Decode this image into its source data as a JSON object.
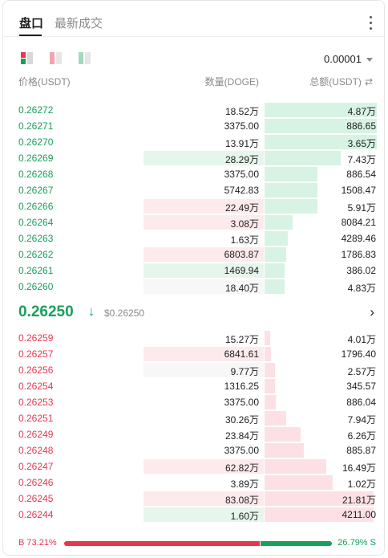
{
  "tabs": [
    {
      "label": "盘口",
      "active": true
    },
    {
      "label": "最新成交",
      "active": false
    }
  ],
  "precision": "0.00001",
  "headers": {
    "price": "价格(USDT)",
    "qty": "数量(DOGE)",
    "total": "总额(USDT)"
  },
  "bids": [
    {
      "price": "0.26272",
      "qty": "18.52万",
      "total": "4.87万",
      "depth": 1.0,
      "qty_hl": ""
    },
    {
      "price": "0.26271",
      "qty": "3375.00",
      "total": "886.65",
      "depth": 1.0,
      "qty_hl": ""
    },
    {
      "price": "0.26270",
      "qty": "13.91万",
      "total": "3.65万",
      "depth": 1.0,
      "qty_hl": ""
    },
    {
      "price": "0.26269",
      "qty": "28.29万",
      "total": "7.43万",
      "depth": 0.68,
      "qty_hl": "g"
    },
    {
      "price": "0.26268",
      "qty": "3375.00",
      "total": "886.54",
      "depth": 0.47,
      "qty_hl": ""
    },
    {
      "price": "0.26267",
      "qty": "5742.83",
      "total": "1508.47",
      "depth": 0.47,
      "qty_hl": ""
    },
    {
      "price": "0.26266",
      "qty": "22.49万",
      "total": "5.91万",
      "depth": 0.47,
      "qty_hl": "r"
    },
    {
      "price": "0.26264",
      "qty": "3.08万",
      "total": "8084.21",
      "depth": 0.25,
      "qty_hl": "r"
    },
    {
      "price": "0.26263",
      "qty": "1.63万",
      "total": "4289.46",
      "depth": 0.21,
      "qty_hl": ""
    },
    {
      "price": "0.26262",
      "qty": "6803.87",
      "total": "1786.83",
      "depth": 0.19,
      "qty_hl": "r"
    },
    {
      "price": "0.26261",
      "qty": "1469.94",
      "total": "386.02",
      "depth": 0.18,
      "qty_hl": "g"
    },
    {
      "price": "0.26260",
      "qty": "18.40万",
      "total": "4.83万",
      "depth": 0.18,
      "qty_hl": "n"
    }
  ],
  "last_price": "0.26250",
  "last_price_arrow": "↓",
  "last_price_fiat": "$0.26250",
  "asks": [
    {
      "price": "0.26259",
      "qty": "15.27万",
      "total": "4.01万",
      "depth": 0.05,
      "qty_hl": ""
    },
    {
      "price": "0.26257",
      "qty": "6841.61",
      "total": "1796.40",
      "depth": 0.06,
      "qty_hl": "r"
    },
    {
      "price": "0.26256",
      "qty": "9.77万",
      "total": "2.57万",
      "depth": 0.09,
      "qty_hl": "n"
    },
    {
      "price": "0.26254",
      "qty": "1316.25",
      "total": "345.57",
      "depth": 0.09,
      "qty_hl": ""
    },
    {
      "price": "0.26253",
      "qty": "3375.00",
      "total": "886.04",
      "depth": 0.1,
      "qty_hl": ""
    },
    {
      "price": "0.26251",
      "qty": "30.26万",
      "total": "7.94万",
      "depth": 0.19,
      "qty_hl": ""
    },
    {
      "price": "0.26249",
      "qty": "23.84万",
      "total": "6.26万",
      "depth": 0.32,
      "qty_hl": ""
    },
    {
      "price": "0.26248",
      "qty": "3375.00",
      "total": "885.87",
      "depth": 0.35,
      "qty_hl": ""
    },
    {
      "price": "0.26247",
      "qty": "62.82万",
      "total": "16.49万",
      "depth": 0.55,
      "qty_hl": "r"
    },
    {
      "price": "0.26246",
      "qty": "3.89万",
      "total": "1.02万",
      "depth": 0.61,
      "qty_hl": ""
    },
    {
      "price": "0.26245",
      "qty": "83.08万",
      "total": "21.81万",
      "depth": 0.97,
      "qty_hl": "r"
    },
    {
      "price": "0.26244",
      "qty": "1.60万",
      "total": "4211.00",
      "depth": 0.97,
      "qty_hl": "g"
    }
  ],
  "ratio": {
    "buy_label": "B",
    "buy_pct": "73.21%",
    "sell_label": "S",
    "sell_pct": "26.79%",
    "buy_fraction": 0.7321
  },
  "colors": {
    "buy": "#18a05a",
    "sell": "#e8364f"
  }
}
